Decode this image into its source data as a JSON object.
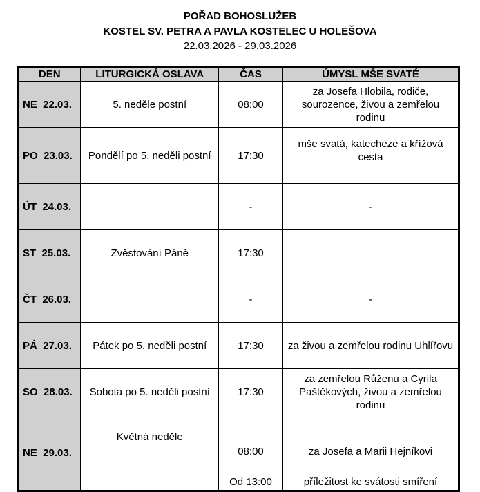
{
  "header": {
    "title": "POŘAD BOHOSLUŽEB",
    "church": "KOSTEL SV. PETRA A PAVLA KOSTELEC U HOLEŠOVA",
    "range": "22.03.2026 - 29.03.2026"
  },
  "columns": [
    "DEN",
    "LITURGICKÁ OSLAVA",
    "ČAS",
    "ÚMYSL MŠE SVATÉ"
  ],
  "rows": [
    {
      "day": "NE  22.03.",
      "celebration": "5. neděle postní",
      "time": "08:00",
      "intention": "za Josefa Hlobila, rodiče, sourozence, živou a zemřelou rodinu"
    },
    {
      "day": "PO  23.03.",
      "celebration": "Pondělí po 5. neděli postní",
      "time": "17:30",
      "intention": "mše svatá, katecheze a křížová cesta"
    },
    {
      "day": "ÚT  24.03.",
      "celebration": "",
      "time": "-",
      "intention": "-"
    },
    {
      "day": "ST  25.03.",
      "celebration": "Zvěstování Páně",
      "time": "17:30",
      "intention": ""
    },
    {
      "day": "ČT  26.03.",
      "celebration": "",
      "time": "-",
      "intention": "-"
    },
    {
      "day": "PÁ  27.03.",
      "celebration": "Pátek po 5. neděli postní",
      "time": "17:30",
      "intention": "za živou a zemřelou rodinu Uhlířovu"
    },
    {
      "day": "SO  28.03.",
      "celebration": "Sobota po 5. neděli postní",
      "time": "17:30",
      "intention": "za zemřelou Růženu a Cyrila Paštěkových, živou a zemřelou rodinu"
    },
    {
      "day": "NE  29.03.",
      "celebration": "Květná neděle",
      "time": "08:00",
      "time2": "Od 13:00",
      "intention": "za Josefa a Marii Hejníkovi",
      "intention2": "příležitost ke svátosti smíření"
    }
  ]
}
